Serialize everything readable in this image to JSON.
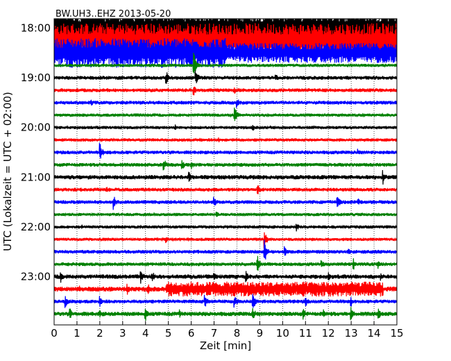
{
  "chart_data": {
    "type": "line",
    "title": "BW.UH3..EHZ 2013-05-20",
    "xlabel": "Zeit  [min]",
    "ylabel": "UTC (Lokalzeit = UTC + 02:00)",
    "xlim": [
      0,
      15
    ],
    "x_ticks": [
      0,
      1,
      2,
      3,
      4,
      5,
      6,
      7,
      8,
      9,
      10,
      11,
      12,
      13,
      14,
      15
    ],
    "y_ticks": [
      "18:00",
      "19:00",
      "20:00",
      "21:00",
      "22:00",
      "23:00"
    ],
    "grid": "vertical dotted lines at each minute",
    "trace_interval_minutes": 15,
    "trace_count": 24,
    "trace_color_cycle": [
      "#000000",
      "#ff0000",
      "#0000ff",
      "#008000"
    ],
    "traces": [
      {
        "start": "18:00",
        "color": "#000000",
        "amplitude": 3.0,
        "events": []
      },
      {
        "start": "18:15",
        "color": "#ff0000",
        "amplitude": 2.8,
        "events": [
          {
            "t": 8.3,
            "a": 1.2
          },
          {
            "t": 14.4,
            "a": 1.0
          }
        ]
      },
      {
        "start": "18:30",
        "color": "#0000ff",
        "amplitude": 1.6,
        "events": [
          {
            "t": 8.2,
            "a": 1.5
          },
          {
            "t": 14.3,
            "a": 1.6
          }
        ]
      },
      {
        "start": "18:45",
        "color": "#008000",
        "amplitude": 0.25,
        "events": [
          {
            "t": 6.1,
            "a": 2.5
          }
        ]
      },
      {
        "start": "19:00",
        "color": "#000000",
        "amplitude": 0.3,
        "events": [
          {
            "t": 4.9,
            "a": 1.2
          },
          {
            "t": 6.2,
            "a": 1.5
          },
          {
            "t": 9.7,
            "a": 0.8
          }
        ]
      },
      {
        "start": "19:15",
        "color": "#ff0000",
        "amplitude": 0.3,
        "events": [
          {
            "t": 6.1,
            "a": 1.0
          },
          {
            "t": 7.9,
            "a": 0.6
          }
        ]
      },
      {
        "start": "19:30",
        "color": "#0000ff",
        "amplitude": 0.3,
        "events": [
          {
            "t": 1.6,
            "a": 0.7
          },
          {
            "t": 8.0,
            "a": 0.9
          }
        ]
      },
      {
        "start": "19:45",
        "color": "#008000",
        "amplitude": 0.25,
        "events": [
          {
            "t": 7.9,
            "a": 1.5
          }
        ]
      },
      {
        "start": "20:00",
        "color": "#000000",
        "amplitude": 0.25,
        "events": [
          {
            "t": 5.3,
            "a": 0.6
          },
          {
            "t": 8.7,
            "a": 0.6
          }
        ]
      },
      {
        "start": "20:15",
        "color": "#ff0000",
        "amplitude": 0.25,
        "events": [
          {
            "t": 7.2,
            "a": 0.5
          }
        ]
      },
      {
        "start": "20:30",
        "color": "#0000ff",
        "amplitude": 0.3,
        "events": [
          {
            "t": 2.0,
            "a": 1.6
          },
          {
            "t": 13.3,
            "a": 0.6
          }
        ]
      },
      {
        "start": "20:45",
        "color": "#008000",
        "amplitude": 0.3,
        "events": [
          {
            "t": 4.8,
            "a": 1.2
          },
          {
            "t": 5.6,
            "a": 1.0
          },
          {
            "t": 6.0,
            "a": 0.8
          }
        ]
      },
      {
        "start": "21:00",
        "color": "#000000",
        "amplitude": 0.35,
        "events": [
          {
            "t": 5.9,
            "a": 1.0
          },
          {
            "t": 14.4,
            "a": 1.2
          }
        ]
      },
      {
        "start": "21:15",
        "color": "#ff0000",
        "amplitude": 0.3,
        "events": [
          {
            "t": 2.3,
            "a": 0.5
          },
          {
            "t": 8.9,
            "a": 1.0
          }
        ]
      },
      {
        "start": "21:30",
        "color": "#0000ff",
        "amplitude": 0.3,
        "events": [
          {
            "t": 2.6,
            "a": 1.4
          },
          {
            "t": 7.0,
            "a": 1.0
          },
          {
            "t": 12.4,
            "a": 1.2
          },
          {
            "t": 13.3,
            "a": 0.8
          }
        ]
      },
      {
        "start": "21:45",
        "color": "#008000",
        "amplitude": 0.25,
        "events": [
          {
            "t": 7.1,
            "a": 0.6
          }
        ]
      },
      {
        "start": "22:00",
        "color": "#000000",
        "amplitude": 0.25,
        "events": [
          {
            "t": 1.2,
            "a": 0.6
          },
          {
            "t": 10.6,
            "a": 0.8
          }
        ]
      },
      {
        "start": "22:15",
        "color": "#ff0000",
        "amplitude": 0.25,
        "events": [
          {
            "t": 4.9,
            "a": 0.6
          },
          {
            "t": 9.2,
            "a": 1.5
          }
        ]
      },
      {
        "start": "22:30",
        "color": "#0000ff",
        "amplitude": 0.3,
        "events": [
          {
            "t": 9.2,
            "a": 2.0
          },
          {
            "t": 10.1,
            "a": 1.2
          },
          {
            "t": 12.9,
            "a": 0.6
          }
        ]
      },
      {
        "start": "22:45",
        "color": "#008000",
        "amplitude": 0.3,
        "events": [
          {
            "t": 8.9,
            "a": 1.5
          },
          {
            "t": 11.7,
            "a": 0.8
          },
          {
            "t": 13.1,
            "a": 1.0
          },
          {
            "t": 14.2,
            "a": 1.0
          }
        ]
      },
      {
        "start": "23:00",
        "color": "#000000",
        "amplitude": 0.35,
        "events": [
          {
            "t": 0.3,
            "a": 1.0
          },
          {
            "t": 3.8,
            "a": 1.2
          },
          {
            "t": 4.3,
            "a": 1.0
          },
          {
            "t": 7.0,
            "a": 0.8
          },
          {
            "t": 8.4,
            "a": 1.0
          },
          {
            "t": 12.0,
            "a": 0.8
          },
          {
            "t": 14.3,
            "a": 0.8
          }
        ]
      },
      {
        "start": "23:15",
        "color": "#ff0000",
        "amplitude": 0.4,
        "events": [
          {
            "t": 1.1,
            "a": 0.8
          },
          {
            "t": 3.2,
            "a": 1.0
          },
          {
            "t": 4.1,
            "a": 1.0
          },
          {
            "t": 5.0,
            "a": 1.2
          },
          {
            "t": 12.1,
            "a": 1.0
          }
        ],
        "bursts": [
          {
            "t0": 4.9,
            "t1": 14.4,
            "a": 1.2
          }
        ]
      },
      {
        "start": "23:30",
        "color": "#0000ff",
        "amplitude": 0.3,
        "events": [
          {
            "t": 0.5,
            "a": 1.2
          },
          {
            "t": 2.0,
            "a": 1.0
          },
          {
            "t": 6.6,
            "a": 1.2
          },
          {
            "t": 7.9,
            "a": 1.2
          },
          {
            "t": 8.7,
            "a": 1.5
          },
          {
            "t": 11.0,
            "a": 1.0
          },
          {
            "t": 13.0,
            "a": 0.8
          }
        ]
      },
      {
        "start": "23:45",
        "color": "#008000",
        "amplitude": 0.35,
        "events": [
          {
            "t": 0.7,
            "a": 1.0
          },
          {
            "t": 2.0,
            "a": 0.8
          },
          {
            "t": 4.0,
            "a": 1.2
          },
          {
            "t": 5.5,
            "a": 0.8
          },
          {
            "t": 8.7,
            "a": 1.2
          },
          {
            "t": 10.9,
            "a": 1.0
          },
          {
            "t": 11.8,
            "a": 0.8
          },
          {
            "t": 13.0,
            "a": 1.2
          },
          {
            "t": 14.2,
            "a": 1.0
          }
        ]
      }
    ]
  }
}
